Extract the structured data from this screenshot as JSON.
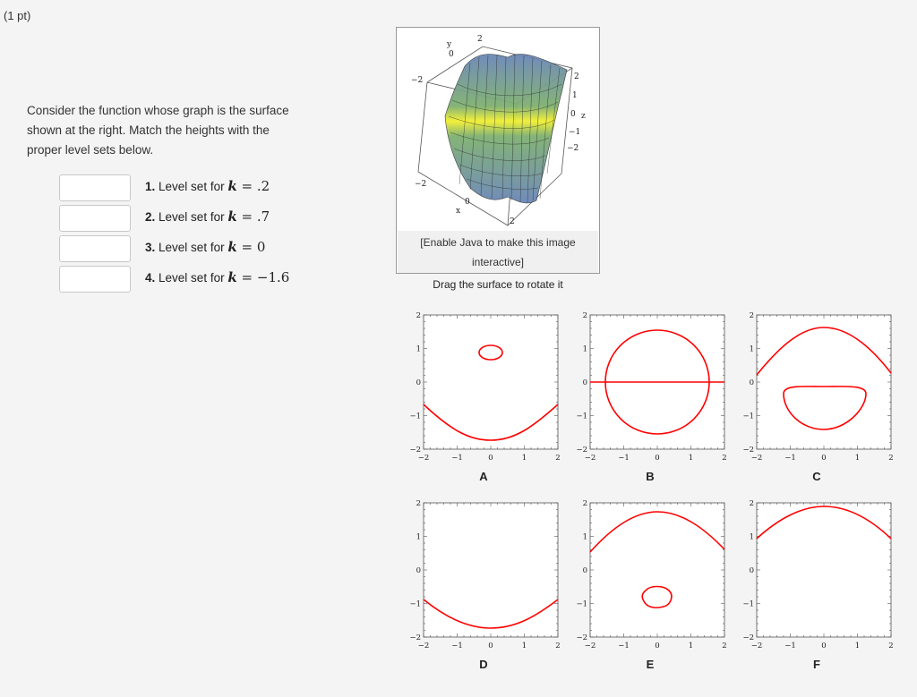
{
  "points": "(1 pt)",
  "question": {
    "line1": "Consider the function whose graph is the surface",
    "line2": "shown at the right. Match the heights with the",
    "line3": "proper level sets below."
  },
  "answers": [
    {
      "num": "1.",
      "text": "Level set for",
      "var": "k",
      "eq": "=",
      "value": ".2"
    },
    {
      "num": "2.",
      "text": "Level set for",
      "var": "k",
      "eq": "=",
      "value": ".7"
    },
    {
      "num": "3.",
      "text": "Level set for",
      "var": "k",
      "eq": "=",
      "value": "0"
    },
    {
      "num": "4.",
      "text": "Level set for",
      "var": "k",
      "eq": "=",
      "value": "−1.6"
    }
  ],
  "surface": {
    "java_note_line1": "[Enable Java to make this image",
    "java_note_line2": "interactive]",
    "drag_note": "Drag the surface to rotate it",
    "axis_labels": {
      "y": "y",
      "x": "x",
      "z": "z"
    },
    "ticks": {
      "y_top_2": "2",
      "y_top_0": "0",
      "left_neg2": "−2",
      "z_2": "2",
      "z_1": "1",
      "z_0": "0",
      "z_neg1": "−1",
      "z_neg2": "−2",
      "x_neg2": "−2",
      "x_0": "0",
      "x_2": "2"
    },
    "colors": {
      "low": "#6f8fc0",
      "mid": "#7fb86e",
      "high": "#f2f030"
    }
  },
  "plots": {
    "curve_color": "#ff0000",
    "x_ticks": [
      "−2",
      "−1",
      "0",
      "1",
      "2"
    ],
    "y_ticks": [
      "2",
      "1",
      "0",
      "−1",
      "−2"
    ],
    "labels": [
      "A",
      "B",
      "C",
      "D",
      "E",
      "F"
    ]
  }
}
